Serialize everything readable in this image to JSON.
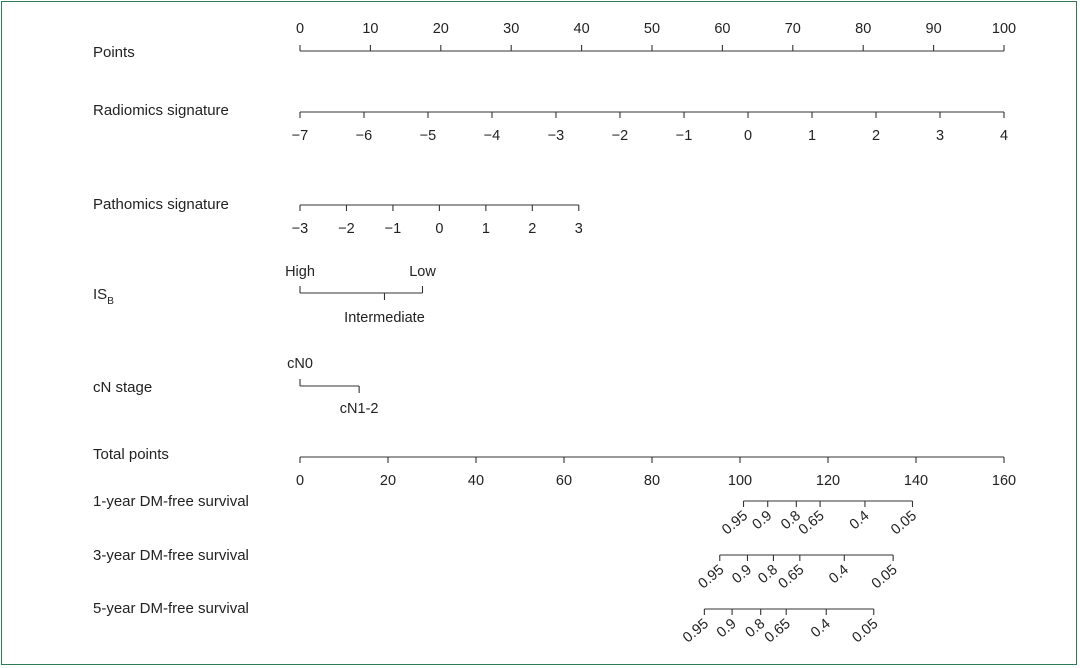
{
  "chart_data": {
    "type": "nomogram",
    "rows": [
      {
        "id": "points",
        "label": "Points",
        "tick_side": "above",
        "ticks": [
          {
            "text": "0",
            "pts": 0
          },
          {
            "text": "10",
            "pts": 10
          },
          {
            "text": "20",
            "pts": 20
          },
          {
            "text": "30",
            "pts": 30
          },
          {
            "text": "40",
            "pts": 40
          },
          {
            "text": "50",
            "pts": 50
          },
          {
            "text": "60",
            "pts": 60
          },
          {
            "text": "70",
            "pts": 70
          },
          {
            "text": "80",
            "pts": 80
          },
          {
            "text": "90",
            "pts": 90
          },
          {
            "text": "100",
            "pts": 100
          }
        ]
      },
      {
        "id": "radiomics",
        "label": "Radiomics signature",
        "tick_side": "below",
        "ticks": [
          {
            "text": "−7",
            "pts": 0
          },
          {
            "text": "−6",
            "pts": 9.09
          },
          {
            "text": "−5",
            "pts": 18.18
          },
          {
            "text": "−4",
            "pts": 27.27
          },
          {
            "text": "−3",
            "pts": 36.36
          },
          {
            "text": "−2",
            "pts": 45.45
          },
          {
            "text": "−1",
            "pts": 54.55
          },
          {
            "text": "0",
            "pts": 63.64
          },
          {
            "text": "1",
            "pts": 72.73
          },
          {
            "text": "2",
            "pts": 81.82
          },
          {
            "text": "3",
            "pts": 90.91
          },
          {
            "text": "4",
            "pts": 100
          }
        ]
      },
      {
        "id": "pathomics",
        "label": "Pathomics signature",
        "tick_side": "below",
        "ticks": [
          {
            "text": "−3",
            "pts": 0
          },
          {
            "text": "−2",
            "pts": 6.6
          },
          {
            "text": "−1",
            "pts": 13.2
          },
          {
            "text": "0",
            "pts": 19.8
          },
          {
            "text": "1",
            "pts": 26.4
          },
          {
            "text": "2",
            "pts": 33.0
          },
          {
            "text": "3",
            "pts": 39.6
          }
        ]
      },
      {
        "id": "isb",
        "label": "IS",
        "label_sub": "B",
        "tick_side": "mixed",
        "ticks": [
          {
            "text": "High",
            "pts": 0,
            "side": "above"
          },
          {
            "text": "Intermediate",
            "pts": 12,
            "side": "below"
          },
          {
            "text": "Low",
            "pts": 17.4,
            "side": "above"
          }
        ]
      },
      {
        "id": "cn",
        "label": "cN stage",
        "tick_side": "mixed",
        "ticks": [
          {
            "text": "cN0",
            "pts": 0,
            "side": "above"
          },
          {
            "text": "cN1-2",
            "pts": 8.4,
            "side": "below"
          }
        ]
      },
      {
        "id": "total",
        "label": "Total points",
        "tick_side": "below",
        "ticks": [
          {
            "text": "0",
            "total": 0
          },
          {
            "text": "20",
            "total": 20
          },
          {
            "text": "40",
            "total": 40
          },
          {
            "text": "60",
            "total": 60
          },
          {
            "text": "80",
            "total": 80
          },
          {
            "text": "100",
            "total": 100
          },
          {
            "text": "120",
            "total": 120
          },
          {
            "text": "140",
            "total": 140
          },
          {
            "text": "160",
            "total": 160
          }
        ]
      },
      {
        "id": "surv1",
        "label": "1-year DM-free survival",
        "tick_side": "rotated",
        "ticks": [
          {
            "text": "0.95",
            "total": 100.8
          },
          {
            "text": "0.9",
            "total": 106.3
          },
          {
            "text": "0.8",
            "total": 112.8
          },
          {
            "text": "0.65",
            "total": 118.2
          },
          {
            "text": "0.4",
            "total": 128.4
          },
          {
            "text": "0.05",
            "total": 139.2
          }
        ]
      },
      {
        "id": "surv3",
        "label": "3-year DM-free survival",
        "tick_side": "rotated",
        "ticks": [
          {
            "text": "0.95",
            "total": 95.4
          },
          {
            "text": "0.9",
            "total": 101.7
          },
          {
            "text": "0.8",
            "total": 107.6
          },
          {
            "text": "0.65",
            "total": 113.6
          },
          {
            "text": "0.4",
            "total": 123.7
          },
          {
            "text": "0.05",
            "total": 134.8
          }
        ]
      },
      {
        "id": "surv5",
        "label": "5-year DM-free survival",
        "tick_side": "rotated",
        "ticks": [
          {
            "text": "0.95",
            "total": 91.9
          },
          {
            "text": "0.9",
            "total": 98.2
          },
          {
            "text": "0.8",
            "total": 104.7
          },
          {
            "text": "0.65",
            "total": 110.5
          },
          {
            "text": "0.4",
            "total": 119.6
          },
          {
            "text": "0.05",
            "total": 130.4
          }
        ]
      }
    ]
  }
}
